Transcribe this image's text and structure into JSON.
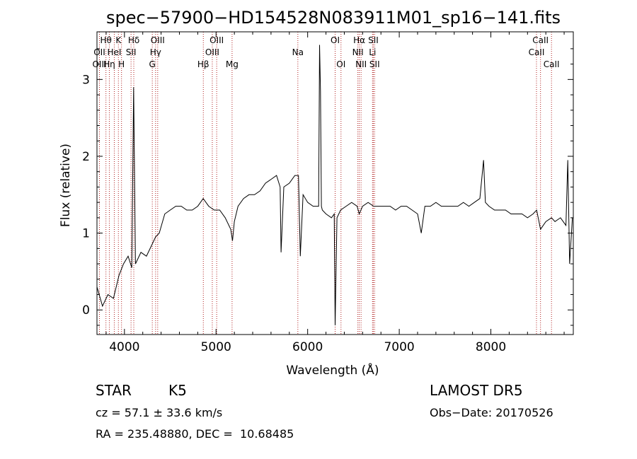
{
  "chart_data": {
    "type": "line",
    "title": "spec−57900−HD154528N083911M01_sp16−141.fits",
    "xlabel": "Wavelength (Å)",
    "ylabel": "Flux (relative)",
    "xlim": [
      3700,
      8900
    ],
    "ylim": [
      -0.32,
      3.62
    ],
    "x_ticks": [
      4000,
      5000,
      6000,
      7000,
      8000
    ],
    "y_ticks": [
      0,
      1,
      2,
      3
    ],
    "series": [
      {
        "color": "#000000",
        "x": [
          3700,
          3760,
          3820,
          3880,
          3940,
          3990,
          4040,
          4080,
          4100,
          4120,
          4180,
          4240,
          4300,
          4340,
          4380,
          4440,
          4500,
          4560,
          4620,
          4680,
          4740,
          4800,
          4860,
          4920,
          4980,
          5040,
          5100,
          5160,
          5180,
          5200,
          5240,
          5300,
          5360,
          5420,
          5480,
          5540,
          5600,
          5660,
          5700,
          5710,
          5740,
          5800,
          5860,
          5900,
          5920,
          5950,
          6000,
          6060,
          6120,
          6130,
          6140,
          6150,
          6160,
          6200,
          6260,
          6290,
          6300,
          6320,
          6360,
          6420,
          6480,
          6540,
          6563,
          6600,
          6660,
          6720,
          6780,
          6840,
          6900,
          6960,
          7020,
          7080,
          7140,
          7200,
          7240,
          7280,
          7340,
          7400,
          7460,
          7520,
          7580,
          7640,
          7700,
          7760,
          7820,
          7880,
          7920,
          7940,
          7980,
          8040,
          8100,
          8160,
          8220,
          8280,
          8340,
          8400,
          8460,
          8500,
          8542,
          8600,
          8662,
          8700,
          8760,
          8820,
          8840,
          8860,
          8890
        ],
        "y": [
          0.3,
          0.05,
          0.2,
          0.15,
          0.45,
          0.6,
          0.7,
          0.55,
          2.9,
          0.6,
          0.75,
          0.7,
          0.85,
          0.95,
          1.0,
          1.25,
          1.3,
          1.35,
          1.35,
          1.3,
          1.3,
          1.35,
          1.45,
          1.35,
          1.3,
          1.3,
          1.2,
          1.05,
          0.9,
          1.15,
          1.35,
          1.45,
          1.5,
          1.5,
          1.55,
          1.65,
          1.7,
          1.75,
          1.6,
          0.75,
          1.6,
          1.65,
          1.75,
          1.75,
          0.7,
          1.5,
          1.4,
          1.35,
          1.35,
          3.45,
          2.85,
          1.35,
          1.3,
          1.25,
          1.2,
          1.25,
          -0.2,
          1.2,
          1.3,
          1.35,
          1.4,
          1.35,
          1.25,
          1.35,
          1.4,
          1.35,
          1.35,
          1.35,
          1.35,
          1.3,
          1.35,
          1.35,
          1.3,
          1.25,
          1.0,
          1.35,
          1.35,
          1.4,
          1.35,
          1.35,
          1.35,
          1.35,
          1.4,
          1.35,
          1.4,
          1.45,
          1.95,
          1.4,
          1.35,
          1.3,
          1.3,
          1.3,
          1.25,
          1.25,
          1.25,
          1.2,
          1.25,
          1.3,
          1.05,
          1.15,
          1.2,
          1.15,
          1.2,
          1.1,
          1.95,
          0.6,
          1.2
        ]
      }
    ],
    "line_color": "#b02020",
    "spectral_lines": [
      {
        "name": "Hθ",
        "wl": 3798,
        "row": 1
      },
      {
        "name": "K",
        "wl": 3934,
        "row": 1
      },
      {
        "name": "Hδ",
        "wl": 4102,
        "row": 1
      },
      {
        "name": "OIII",
        "wl": 4363,
        "row": 1
      },
      {
        "name": "OIII",
        "wl": 5007,
        "row": 1
      },
      {
        "name": "OI",
        "wl": 6300,
        "row": 1
      },
      {
        "name": "Hα",
        "wl": 6563,
        "row": 1
      },
      {
        "name": "SII",
        "wl": 6717,
        "row": 1
      },
      {
        "name": "CaII",
        "wl": 8542,
        "row": 1
      },
      {
        "name": "OII",
        "wl": 3727,
        "row": 2
      },
      {
        "name": "HeI",
        "wl": 3889,
        "row": 2
      },
      {
        "name": "SII",
        "wl": 4072,
        "row": 2
      },
      {
        "name": "Hγ",
        "wl": 4340,
        "row": 2
      },
      {
        "name": "OIII",
        "wl": 4959,
        "row": 2
      },
      {
        "name": "Na",
        "wl": 5893,
        "row": 2
      },
      {
        "name": "NII",
        "wl": 6548,
        "row": 2
      },
      {
        "name": "Li",
        "wl": 6708,
        "row": 2
      },
      {
        "name": "CaII",
        "wl": 8498,
        "row": 2
      },
      {
        "name": "OIII",
        "wl": 3727,
        "row": 3
      },
      {
        "name": "Hη",
        "wl": 3835,
        "row": 3
      },
      {
        "name": "H",
        "wl": 3968,
        "row": 3
      },
      {
        "name": "G",
        "wl": 4304,
        "row": 3
      },
      {
        "name": "Hβ",
        "wl": 4861,
        "row": 3
      },
      {
        "name": "Mg",
        "wl": 5175,
        "row": 3
      },
      {
        "name": "OI",
        "wl": 6364,
        "row": 3
      },
      {
        "name": "NII",
        "wl": 6583,
        "row": 3
      },
      {
        "name": "SII",
        "wl": 6731,
        "row": 3
      },
      {
        "name": "CaII",
        "wl": 8662,
        "row": 3
      }
    ]
  },
  "info": {
    "class_label": "STAR",
    "subclass": "K5",
    "survey": "LAMOST DR5",
    "cz": "cz = 57.1 ± 33.6 km/s",
    "obs_date": "Obs−Date: 20170526",
    "radec": "RA = 235.48880, DEC =  10.68485"
  }
}
